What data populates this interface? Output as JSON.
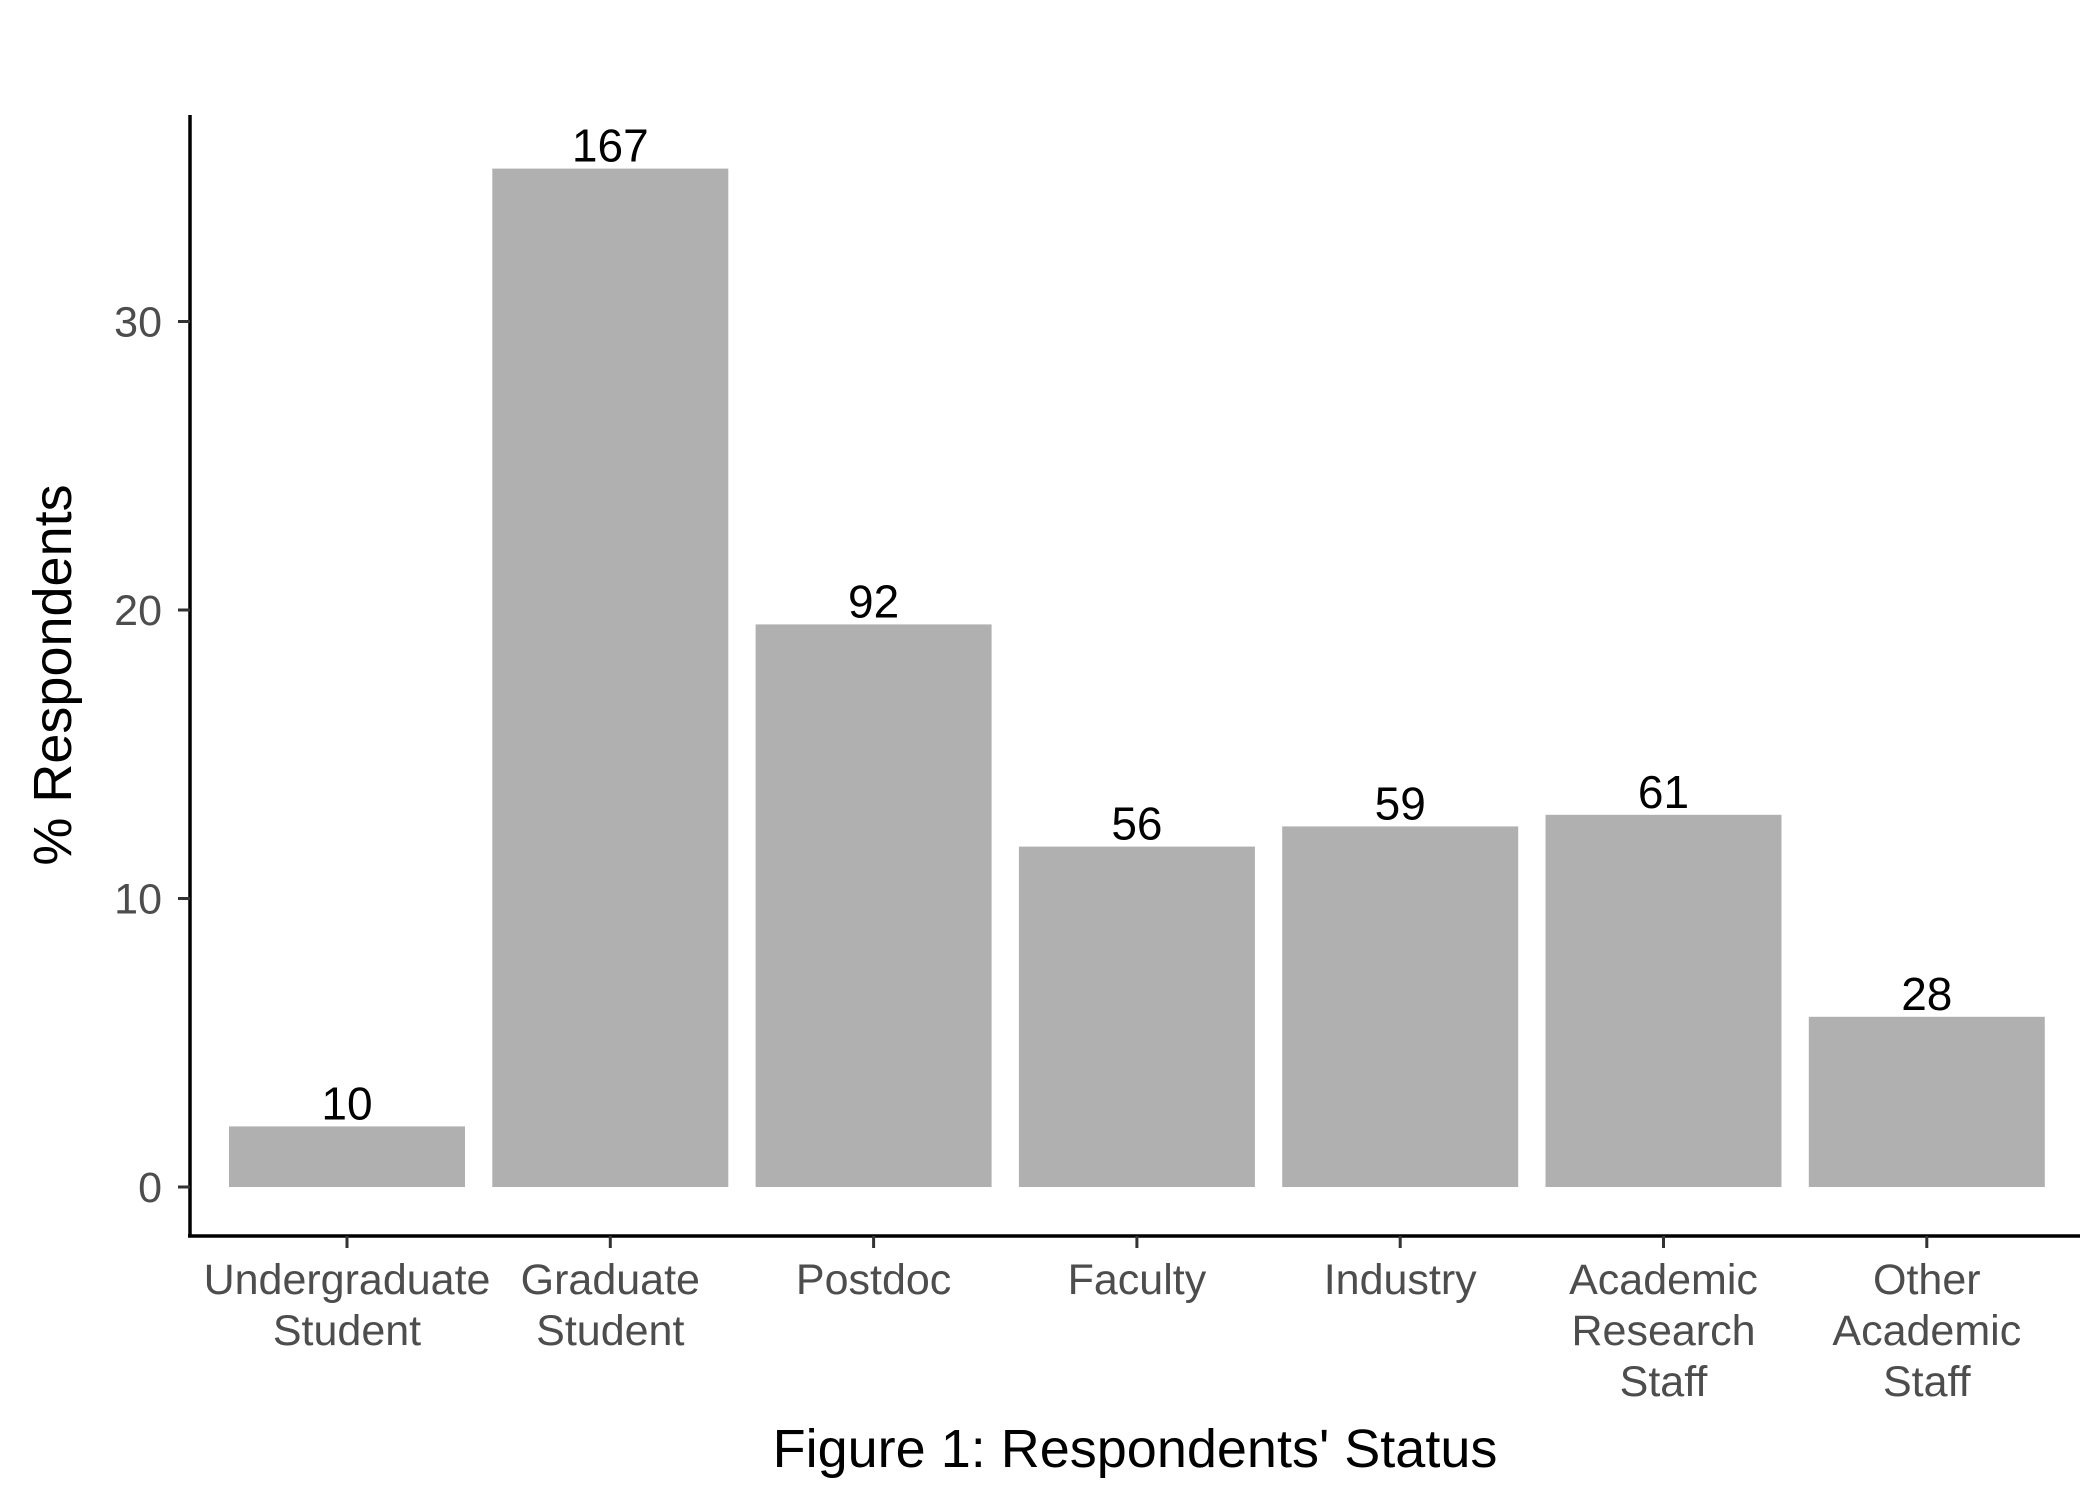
{
  "chart_data": {
    "type": "bar",
    "title": "",
    "xlabel": "Figure 1: Respondents' Status",
    "ylabel": "% Respondents",
    "ylim": [
      0,
      38.5
    ],
    "yticks": [
      0,
      10,
      20,
      30
    ],
    "categories": [
      [
        "Undergraduate",
        "Student"
      ],
      [
        "Graduate",
        "Student"
      ],
      [
        "Postdoc"
      ],
      [
        "Faculty"
      ],
      [
        "Industry"
      ],
      [
        "Academic",
        "Research",
        "Staff"
      ],
      [
        "Other",
        "Academic",
        "Staff"
      ]
    ],
    "values": [
      2.1,
      35.3,
      19.5,
      11.8,
      12.5,
      12.9,
      5.9
    ],
    "data_labels": [
      "10",
      "167",
      "92",
      "56",
      "59",
      "61",
      "28"
    ],
    "grid": false,
    "legend": "none"
  },
  "colors": {
    "bar": "#b0b0b0",
    "axis": "#000000",
    "tick_text": "#4d4d4d",
    "background": "#ffffff"
  }
}
